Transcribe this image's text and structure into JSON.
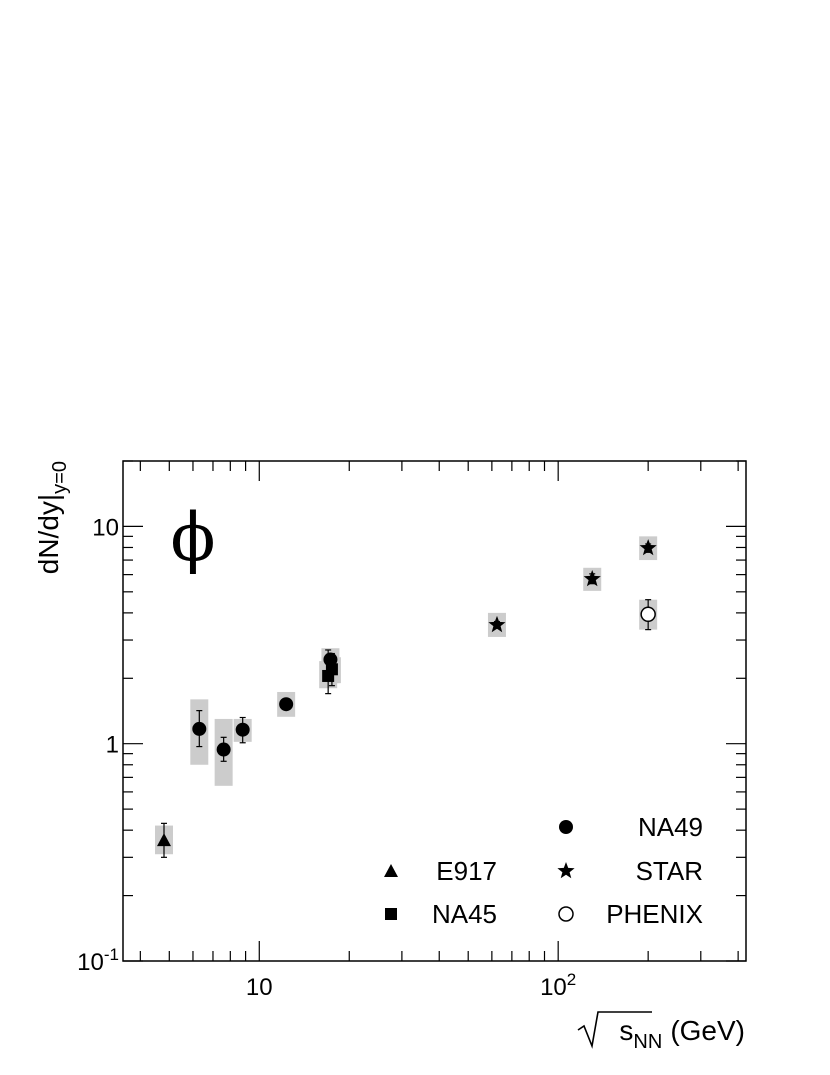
{
  "chart_data": {
    "type": "scatter",
    "title": "",
    "particle_label": "ϕ",
    "xlabel": "(GeV)",
    "xlabel_sub": "NN",
    "xlabel_var": "s",
    "ylabel": "dN/dy|",
    "ylabel_sub": "y=0",
    "xscale": "log",
    "yscale": "log",
    "xlim": [
      3.5,
      425
    ],
    "ylim": [
      0.1,
      20
    ],
    "x_ticks": [
      {
        "value": 10,
        "label": "10"
      },
      {
        "value": 100,
        "label": "10",
        "sup": "2"
      }
    ],
    "y_ticks": [
      {
        "value": 0.1,
        "label": "10",
        "sup": "-1"
      },
      {
        "value": 1,
        "label": "1"
      },
      {
        "value": 10,
        "label": "10"
      }
    ],
    "legend_position": "bottom-right",
    "series": [
      {
        "name": "NA49",
        "marker": "circle-filled",
        "points": [
          {
            "x": 6.3,
            "y": 1.17,
            "ylo": 0.97,
            "yhi": 1.42,
            "sys_lo": 0.8,
            "sys_hi": 1.6
          },
          {
            "x": 7.6,
            "y": 0.94,
            "ylo": 0.83,
            "yhi": 1.07,
            "sys_lo": 0.64,
            "sys_hi": 1.3
          },
          {
            "x": 8.8,
            "y": 1.16,
            "ylo": 1.01,
            "yhi": 1.32,
            "sys_lo": 1.02,
            "sys_hi": 1.3
          },
          {
            "x": 12.3,
            "y": 1.52,
            "ylo": 1.44,
            "yhi": 1.6,
            "sys_lo": 1.33,
            "sys_hi": 1.73
          },
          {
            "x": 17.3,
            "y": 2.44,
            "ylo": 2.32,
            "yhi": 2.56,
            "sys_lo": 1.9,
            "sys_hi": 2.75
          }
        ]
      },
      {
        "name": "E917",
        "marker": "triangle-filled",
        "points": [
          {
            "x": 4.8,
            "y": 0.36,
            "ylo": 0.3,
            "yhi": 0.43,
            "sys_lo": 0.31,
            "sys_hi": 0.42
          }
        ]
      },
      {
        "name": "NA45",
        "marker": "square-filled",
        "points": [
          {
            "x": 17.0,
            "y": 2.05,
            "ylo": 1.7,
            "yhi": 2.7,
            "sys_lo": 1.8,
            "sys_hi": 2.4
          },
          {
            "x": 17.5,
            "y": 2.2,
            "ylo": 1.85,
            "yhi": 2.6,
            "sys_lo": 1.9,
            "sys_hi": 2.5
          }
        ]
      },
      {
        "name": "STAR",
        "marker": "star-filled",
        "points": [
          {
            "x": 62.4,
            "y": 3.52,
            "ylo": 3.4,
            "yhi": 3.65,
            "sys_lo": 3.1,
            "sys_hi": 4.0
          },
          {
            "x": 130,
            "y": 5.73,
            "ylo": 5.45,
            "yhi": 6.05,
            "sys_lo": 5.05,
            "sys_hi": 6.45
          },
          {
            "x": 200,
            "y": 7.95,
            "ylo": 7.6,
            "yhi": 8.3,
            "sys_lo": 7.0,
            "sys_hi": 9.0
          }
        ]
      },
      {
        "name": "PHENIX",
        "marker": "circle-open",
        "points": [
          {
            "x": 200,
            "y": 3.94,
            "ylo": 3.35,
            "yhi": 4.6,
            "sys_lo": 3.35,
            "sys_hi": 4.6
          }
        ]
      }
    ],
    "colors": {
      "marker": "#000000",
      "sys_box": "#cccccc",
      "axis": "#000000"
    }
  }
}
